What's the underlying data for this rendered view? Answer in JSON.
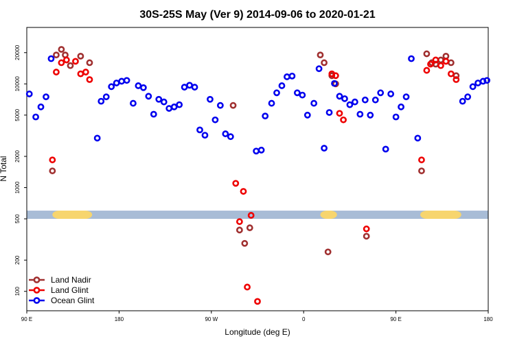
{
  "chart_data": {
    "type": "scatter",
    "title": "30S-25S May (Ver 9)   2014-09-06 to 2020-01-21",
    "xlabel": "Longitude (deg E)",
    "ylabel": "N Total",
    "y_scale": "log",
    "xlim": [
      0,
      360
    ],
    "ylim": [
      65,
      35000
    ],
    "x_ticks": [
      {
        "pos": 0,
        "label": "90 E"
      },
      {
        "pos": 72,
        "label": "180"
      },
      {
        "pos": 144,
        "label": "90 W"
      },
      {
        "pos": 216,
        "label": "0"
      },
      {
        "pos": 288,
        "label": "90 E"
      },
      {
        "pos": 360,
        "label": "180"
      }
    ],
    "y_ticks": [
      {
        "value": 100,
        "label": "100"
      },
      {
        "value": 200,
        "label": "200"
      },
      {
        "value": 500,
        "label": "500"
      },
      {
        "value": 1000,
        "label": "1000"
      },
      {
        "value": 2000,
        "label": "2000"
      },
      {
        "value": 5000,
        "label": "5000"
      },
      {
        "value": 10000,
        "label": "10000"
      },
      {
        "value": 20000,
        "label": "20000"
      }
    ],
    "band": {
      "y_range": [
        500,
        600
      ],
      "color": "#a8bcd6",
      "land_color": "#f7d56e",
      "land_segments": [
        [
          20,
          51
        ],
        [
          229,
          242
        ],
        [
          307,
          339
        ]
      ]
    },
    "legend": {
      "position": "bottom-left",
      "entries": [
        {
          "name": "Land Nadir",
          "color": "#a03030"
        },
        {
          "name": "Land Glint",
          "color": "#ee0000"
        },
        {
          "name": "Ocean Glint",
          "color": "#0000ee"
        }
      ]
    },
    "series": [
      {
        "name": "Land Nadir",
        "color": "#a03030",
        "x": [
          20,
          23,
          27,
          30,
          34,
          42,
          49,
          161,
          166,
          170,
          174,
          229,
          232,
          235,
          238,
          241,
          265,
          308,
          312,
          316,
          319,
          323,
          327,
          331,
          335
        ],
        "y": [
          1450,
          19000,
          21500,
          19000,
          15000,
          18500,
          16000,
          6200,
          390,
          290,
          410,
          19000,
          16000,
          240,
          12000,
          10000,
          340,
          1450,
          19500,
          16000,
          15500,
          17000,
          18500,
          16000,
          12000
        ]
      },
      {
        "name": "Land Glint",
        "color": "#ee0000",
        "x": [
          20,
          23,
          27,
          31,
          38,
          42,
          46,
          49,
          163,
          166,
          169,
          172,
          175,
          180,
          238,
          241,
          244,
          247,
          265,
          308,
          312,
          315,
          319,
          323,
          327,
          331,
          335
        ],
        "y": [
          1850,
          13000,
          16000,
          17000,
          16500,
          12500,
          13000,
          11000,
          1100,
          470,
          920,
          110,
          540,
          80,
          12500,
          12000,
          5200,
          4500,
          400,
          1850,
          13500,
          15500,
          17000,
          15000,
          16500,
          12500,
          11000
        ]
      },
      {
        "name": "Ocean Glint",
        "color": "#0000ee",
        "x": [
          2,
          7,
          11,
          15,
          19,
          55,
          58,
          62,
          66,
          70,
          74,
          78,
          83,
          87,
          91,
          95,
          99,
          103,
          107,
          111,
          115,
          119,
          123,
          127,
          131,
          135,
          139,
          143,
          147,
          151,
          155,
          159,
          179,
          183,
          186,
          191,
          195,
          199,
          203,
          207,
          211,
          215,
          219,
          224,
          228,
          232,
          236,
          240,
          244,
          248,
          252,
          256,
          260,
          264,
          268,
          272,
          276,
          280,
          284,
          288,
          292,
          296,
          300,
          305,
          340,
          344,
          348,
          352,
          356,
          359
        ],
        "y": [
          8000,
          4800,
          6000,
          7500,
          17500,
          3000,
          6800,
          7500,
          9400,
          10200,
          10600,
          10800,
          6500,
          9600,
          9200,
          7600,
          5100,
          7100,
          6700,
          5800,
          6000,
          6300,
          9300,
          9700,
          9300,
          3600,
          3200,
          7100,
          4500,
          6200,
          3300,
          3100,
          2250,
          2300,
          4900,
          6500,
          8200,
          9600,
          11700,
          11900,
          8200,
          7800,
          5000,
          6500,
          14000,
          2400,
          5300,
          10100,
          7600,
          7200,
          6300,
          6700,
          5100,
          7000,
          5000,
          7000,
          8200,
          2350,
          8000,
          4800,
          6000,
          7500,
          17500,
          3000,
          6800,
          7500,
          9400,
          10200,
          10600,
          10800
        ]
      }
    ]
  }
}
